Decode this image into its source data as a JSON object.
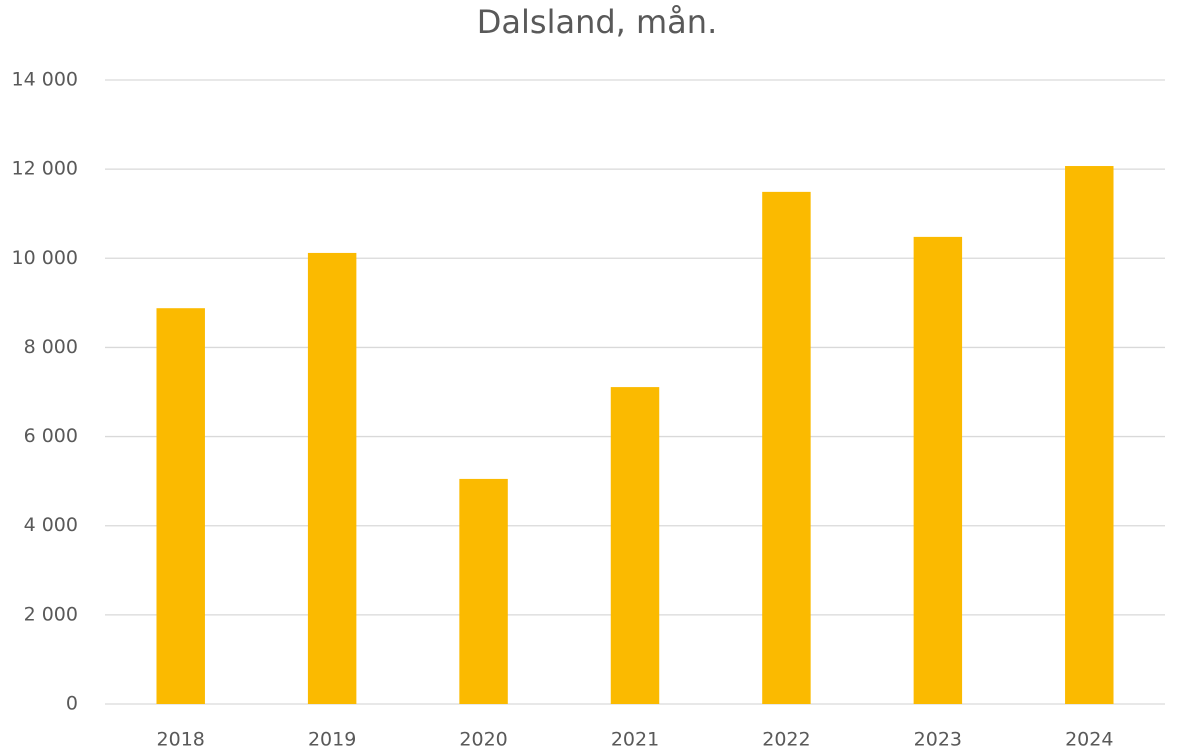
{
  "chart_data": {
    "type": "bar",
    "title": "Dalsland, mån.",
    "categories": [
      "2018",
      "2019",
      "2020",
      "2021",
      "2022",
      "2023",
      "2024"
    ],
    "values": [
      8880,
      10120,
      5050,
      7110,
      11490,
      10480,
      12070
    ],
    "color": "#fbba00",
    "ylim": [
      0,
      14000
    ],
    "yticks": [
      0,
      {
        "value": 2000,
        "label": "2 000"
      },
      {
        "value": 4000,
        "label": "4 000"
      },
      {
        "value": 6000,
        "label": "6 000"
      },
      {
        "value": 8000,
        "label": "8 000"
      },
      {
        "value": 10000,
        "label": "10 000"
      },
      {
        "value": 12000,
        "label": "12 000"
      },
      {
        "value": 14000,
        "label": "14 000"
      }
    ],
    "grid": true
  }
}
